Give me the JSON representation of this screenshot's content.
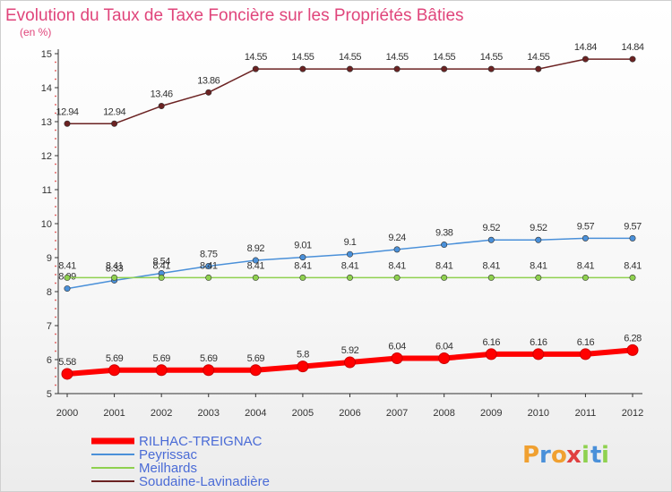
{
  "chart_data": {
    "type": "line",
    "title": "Evolution du Taux de Taxe Foncière sur les Propriétés Bâties",
    "ylabel": "(en %)",
    "xlabel": "",
    "categories": [
      "2000",
      "2001",
      "2002",
      "2003",
      "2004",
      "2005",
      "2006",
      "2007",
      "2008",
      "2009",
      "2010",
      "2011",
      "2012"
    ],
    "yticks": [
      "5",
      "6",
      "7",
      "8",
      "9",
      "10",
      "11",
      "12",
      "13",
      "14",
      "15"
    ],
    "ylim": [
      5,
      15
    ],
    "grid": false,
    "legend_position": "bottom-left",
    "series": [
      {
        "name": "Soudaine-Lavinadière",
        "color": "#6b2222",
        "values": [
          12.94,
          12.94,
          13.46,
          13.86,
          14.55,
          14.55,
          14.55,
          14.55,
          14.55,
          14.55,
          14.55,
          14.84,
          14.84
        ],
        "labels": [
          "12.94",
          "12.94",
          "13.46",
          "13.86",
          "14.55",
          "14.55",
          "14.55",
          "14.55",
          "14.55",
          "14.55",
          "14.55",
          "14.84",
          "14.84"
        ]
      },
      {
        "name": "Peyrissac",
        "color": "#4a90d9",
        "values": [
          8.09,
          8.33,
          8.54,
          8.75,
          8.92,
          9.01,
          9.1,
          9.24,
          9.38,
          9.52,
          9.52,
          9.57,
          9.57
        ],
        "labels": [
          "8.09",
          "8.33",
          "8.54",
          "8.75",
          "8.92",
          "9.01",
          "9.1",
          "9.24",
          "9.38",
          "9.52",
          "9.52",
          "9.57",
          "9.57"
        ]
      },
      {
        "name": "Meilhards",
        "color": "#8fd14f",
        "values": [
          8.41,
          8.41,
          8.41,
          8.41,
          8.41,
          8.41,
          8.41,
          8.41,
          8.41,
          8.41,
          8.41,
          8.41,
          8.41
        ],
        "labels": [
          "8.41",
          "8.41",
          "8.41",
          "8.41",
          "8.41",
          "8.41",
          "8.41",
          "8.41",
          "8.41",
          "8.41",
          "8.41",
          "8.41",
          "8.41"
        ]
      },
      {
        "name": "RILHAC-TREIGNAC",
        "color": "#ff0000",
        "values": [
          5.58,
          5.69,
          5.69,
          5.69,
          5.69,
          5.8,
          5.92,
          6.04,
          6.04,
          6.16,
          6.16,
          6.16,
          6.28
        ],
        "labels": [
          "5.58",
          "5.69",
          "5.69",
          "5.69",
          "5.69",
          "5.8",
          "5.92",
          "6.04",
          "6.04",
          "6.16",
          "6.16",
          "6.16",
          "6.28"
        ]
      }
    ],
    "legend": [
      "RILHAC-TREIGNAC",
      "Peyrissac",
      "Meilhards",
      "Soudaine-Lavinadière"
    ]
  },
  "brand": {
    "letters": [
      "P",
      "r",
      "o",
      "x",
      "i",
      "t",
      "i"
    ],
    "colors": [
      "#f0a030",
      "#4a90d9",
      "#f0a030",
      "#e04040",
      "#8fd14f",
      "#4a90d9",
      "#8fd14f"
    ]
  }
}
